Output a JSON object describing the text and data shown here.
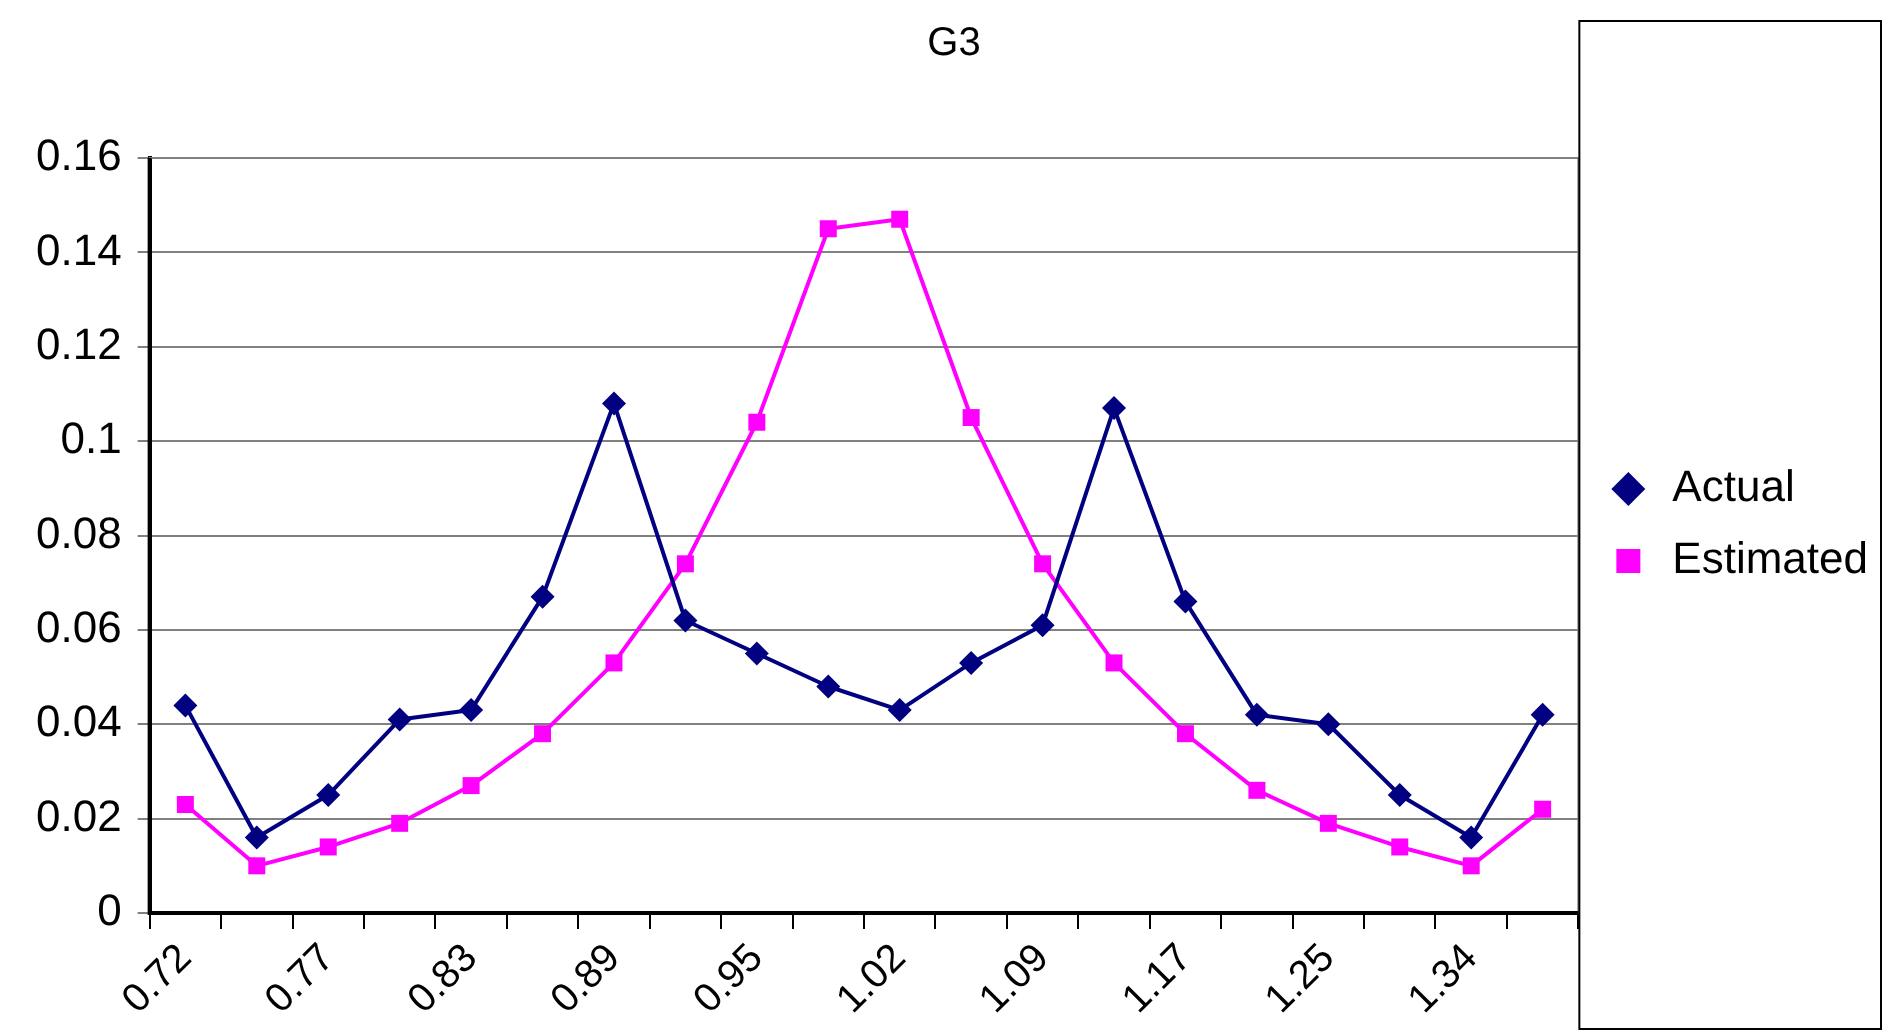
{
  "chart_data": {
    "type": "line",
    "title": "G3",
    "categories": [
      "0.72",
      null,
      "0.77",
      null,
      "0.83",
      null,
      "0.89",
      null,
      "0.95",
      null,
      "1.02",
      null,
      "1.09",
      null,
      "1.17",
      null,
      "1.25",
      null,
      "1.34",
      null
    ],
    "series": [
      {
        "name": "Actual",
        "color": "#000080",
        "marker": "diamond",
        "values": [
          0.044,
          0.016,
          0.025,
          0.041,
          0.043,
          0.067,
          0.108,
          0.062,
          0.055,
          0.048,
          0.043,
          0.053,
          0.061,
          0.107,
          0.066,
          0.042,
          0.04,
          0.025,
          0.016,
          0.042
        ]
      },
      {
        "name": "Estimated",
        "color": "#ff00ff",
        "marker": "square",
        "values": [
          0.023,
          0.01,
          0.014,
          0.019,
          0.027,
          0.038,
          0.053,
          0.074,
          0.104,
          0.145,
          0.147,
          0.105,
          0.074,
          0.053,
          0.038,
          0.026,
          0.019,
          0.014,
          0.01,
          0.022
        ]
      }
    ],
    "ylim": [
      0,
      0.16
    ],
    "yticks": [
      0,
      0.02,
      0.04,
      0.06,
      0.08,
      0.1,
      0.12,
      0.14,
      0.16
    ],
    "grid": "y",
    "legend": "right",
    "line_style": "solid"
  }
}
